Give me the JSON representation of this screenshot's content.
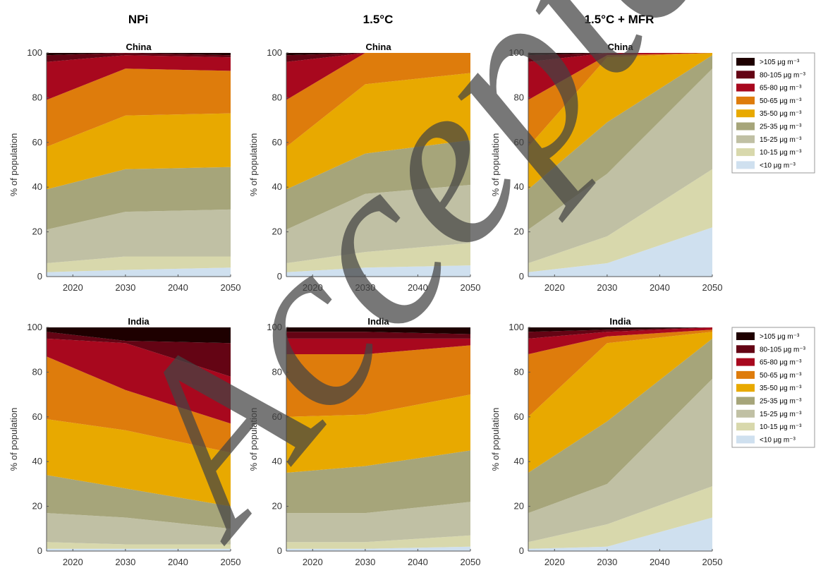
{
  "figure": {
    "column_titles": [
      "NPi",
      "1.5°C",
      "1.5°C + MFR"
    ],
    "watermark": "Accepted Manuscript"
  },
  "colors": {
    "<10": "#cfe0ef",
    "10-15": "#d8d8ac",
    "15-25": "#c0c0a4",
    "25-35": "#a6a57a",
    "35-50": "#e8a900",
    "50-65": "#de7c0c",
    "65-80": "#a8081e",
    "80-105": "#640414",
    ">105": "#1e0000"
  },
  "legends": [
    {
      "items": [
        ">105 μg m⁻³",
        "80-105 μg m⁻³",
        "65-80 μg m⁻³",
        "50-65 μg m⁻³",
        "35-50 μg m⁻³",
        "25-35 μg m⁻³",
        "15-25 μg m⁻³",
        "10-15 μg m⁻³",
        "<10 μg m⁻³"
      ]
    },
    {
      "items": [
        ">105 μg m⁻³",
        "80-105 μg m⁻³",
        "65-80 μg m⁻³",
        "50-65 μg m⁻³",
        "35-50 μg m⁻³",
        "25-35 μg m⁻³",
        "15-25 μg m⁻³",
        "10-15 μg m⁻³",
        "<10 μg m⁻³"
      ]
    }
  ],
  "chart_data": [
    {
      "type": "area",
      "title": "China",
      "column": "NPi",
      "ylabel": "% of population",
      "xlim": [
        2015,
        2050
      ],
      "ylim": [
        0,
        100
      ],
      "x": [
        2015,
        2030,
        2050
      ],
      "xticks": [
        "2020",
        "2030",
        "2040",
        "2050"
      ],
      "yticks": [
        "0",
        "20",
        "40",
        "60",
        "80",
        "100"
      ],
      "series": [
        {
          "key": "<10",
          "values": [
            2,
            3,
            4
          ]
        },
        {
          "key": "10-15",
          "values": [
            4,
            6,
            5
          ]
        },
        {
          "key": "15-25",
          "values": [
            15,
            20,
            21
          ]
        },
        {
          "key": "25-35",
          "values": [
            18,
            19,
            19
          ]
        },
        {
          "key": "35-50",
          "values": [
            19,
            24,
            24
          ]
        },
        {
          "key": "50-65",
          "values": [
            21,
            21,
            19
          ]
        },
        {
          "key": "65-80",
          "values": [
            17,
            6,
            6
          ]
        },
        {
          "key": "80-105",
          "values": [
            3,
            1,
            1
          ]
        },
        {
          "key": ">105",
          "values": [
            1,
            0,
            1
          ]
        }
      ]
    },
    {
      "type": "area",
      "title": "China",
      "column": "1.5°C",
      "ylabel": "% of population",
      "xlim": [
        2015,
        2050
      ],
      "ylim": [
        0,
        100
      ],
      "x": [
        2015,
        2030,
        2050
      ],
      "xticks": [
        "2020",
        "2030",
        "2040",
        "2050"
      ],
      "yticks": [
        "0",
        "20",
        "40",
        "60",
        "80",
        "100"
      ],
      "series": [
        {
          "key": "<10",
          "values": [
            2,
            4,
            5
          ]
        },
        {
          "key": "10-15",
          "values": [
            4,
            7,
            10
          ]
        },
        {
          "key": "15-25",
          "values": [
            15,
            26,
            26
          ]
        },
        {
          "key": "25-35",
          "values": [
            18,
            18,
            20
          ]
        },
        {
          "key": "35-50",
          "values": [
            19,
            31,
            30
          ]
        },
        {
          "key": "50-65",
          "values": [
            21,
            14,
            9
          ]
        },
        {
          "key": "65-80",
          "values": [
            17,
            0,
            0
          ]
        },
        {
          "key": "80-105",
          "values": [
            3,
            0,
            0
          ]
        },
        {
          "key": ">105",
          "values": [
            1,
            0,
            0
          ]
        }
      ]
    },
    {
      "type": "area",
      "title": "China",
      "column": "1.5°C + MFR",
      "ylabel": "% of population",
      "xlim": [
        2015,
        2050
      ],
      "ylim": [
        0,
        100
      ],
      "x": [
        2015,
        2030,
        2050
      ],
      "xticks": [
        "2020",
        "2030",
        "2040",
        "2050"
      ],
      "yticks": [
        "0",
        "20",
        "40",
        "60",
        "80",
        "100"
      ],
      "series": [
        {
          "key": "<10",
          "values": [
            2,
            6,
            22
          ]
        },
        {
          "key": "10-15",
          "values": [
            4,
            12,
            26
          ]
        },
        {
          "key": "15-25",
          "values": [
            15,
            28,
            45
          ]
        },
        {
          "key": "25-35",
          "values": [
            18,
            23,
            6
          ]
        },
        {
          "key": "35-50",
          "values": [
            19,
            29,
            1
          ]
        },
        {
          "key": "50-65",
          "values": [
            21,
            1,
            0
          ]
        },
        {
          "key": "65-80",
          "values": [
            17,
            1,
            0
          ]
        },
        {
          "key": "80-105",
          "values": [
            3,
            0,
            0
          ]
        },
        {
          "key": ">105",
          "values": [
            1,
            0,
            0
          ]
        }
      ]
    },
    {
      "type": "area",
      "title": "India",
      "column": "NPi",
      "ylabel": "% of population",
      "xlim": [
        2015,
        2050
      ],
      "ylim": [
        0,
        100
      ],
      "x": [
        2015,
        2030,
        2050
      ],
      "xticks": [
        "2020",
        "2030",
        "2040",
        "2050"
      ],
      "yticks": [
        "0",
        "20",
        "40",
        "60",
        "80",
        "100"
      ],
      "series": [
        {
          "key": "<10",
          "values": [
            1,
            1,
            1
          ]
        },
        {
          "key": "10-15",
          "values": [
            3,
            2,
            2
          ]
        },
        {
          "key": "15-25",
          "values": [
            13,
            12,
            7
          ]
        },
        {
          "key": "25-35",
          "values": [
            17,
            13,
            10
          ]
        },
        {
          "key": "35-50",
          "values": [
            25,
            26,
            24
          ]
        },
        {
          "key": "50-65",
          "values": [
            28,
            18,
            13
          ]
        },
        {
          "key": "65-80",
          "values": [
            8,
            21,
            21
          ]
        },
        {
          "key": "80-105",
          "values": [
            3,
            1,
            15
          ]
        },
        {
          "key": ">105",
          "values": [
            2,
            6,
            7
          ]
        }
      ]
    },
    {
      "type": "area",
      "title": "India",
      "column": "1.5°C",
      "ylabel": "% of population",
      "xlim": [
        2015,
        2050
      ],
      "ylim": [
        0,
        100
      ],
      "x": [
        2015,
        2030,
        2050
      ],
      "xticks": [
        "2020",
        "2030",
        "2040",
        "2050"
      ],
      "yticks": [
        "0",
        "20",
        "40",
        "60",
        "80",
        "100"
      ],
      "series": [
        {
          "key": "<10",
          "values": [
            1,
            1,
            2
          ]
        },
        {
          "key": "10-15",
          "values": [
            3,
            3,
            5
          ]
        },
        {
          "key": "15-25",
          "values": [
            13,
            13,
            15
          ]
        },
        {
          "key": "25-35",
          "values": [
            18,
            21,
            23
          ]
        },
        {
          "key": "35-50",
          "values": [
            25,
            23,
            25
          ]
        },
        {
          "key": "50-65",
          "values": [
            28,
            27,
            22
          ]
        },
        {
          "key": "65-80",
          "values": [
            7,
            7,
            3
          ]
        },
        {
          "key": "80-105",
          "values": [
            3,
            3,
            2
          ]
        },
        {
          "key": ">105",
          "values": [
            2,
            2,
            3
          ]
        }
      ]
    },
    {
      "type": "area",
      "title": "India",
      "column": "1.5°C + MFR",
      "ylabel": "% of population",
      "xlim": [
        2015,
        2050
      ],
      "ylim": [
        0,
        100
      ],
      "x": [
        2015,
        2030,
        2050
      ],
      "xticks": [
        "2020",
        "2030",
        "2040",
        "2050"
      ],
      "yticks": [
        "0",
        "20",
        "40",
        "60",
        "80",
        "100"
      ],
      "series": [
        {
          "key": "<10",
          "values": [
            1,
            2,
            15
          ]
        },
        {
          "key": "10-15",
          "values": [
            3,
            10,
            14
          ]
        },
        {
          "key": "15-25",
          "values": [
            13,
            18,
            48
          ]
        },
        {
          "key": "25-35",
          "values": [
            18,
            28,
            18
          ]
        },
        {
          "key": "35-50",
          "values": [
            25,
            35,
            3
          ]
        },
        {
          "key": "50-65",
          "values": [
            28,
            3,
            1
          ]
        },
        {
          "key": "65-80",
          "values": [
            7,
            2,
            1
          ]
        },
        {
          "key": "80-105",
          "values": [
            3,
            1,
            0
          ]
        },
        {
          "key": ">105",
          "values": [
            2,
            1,
            0
          ]
        }
      ]
    }
  ]
}
